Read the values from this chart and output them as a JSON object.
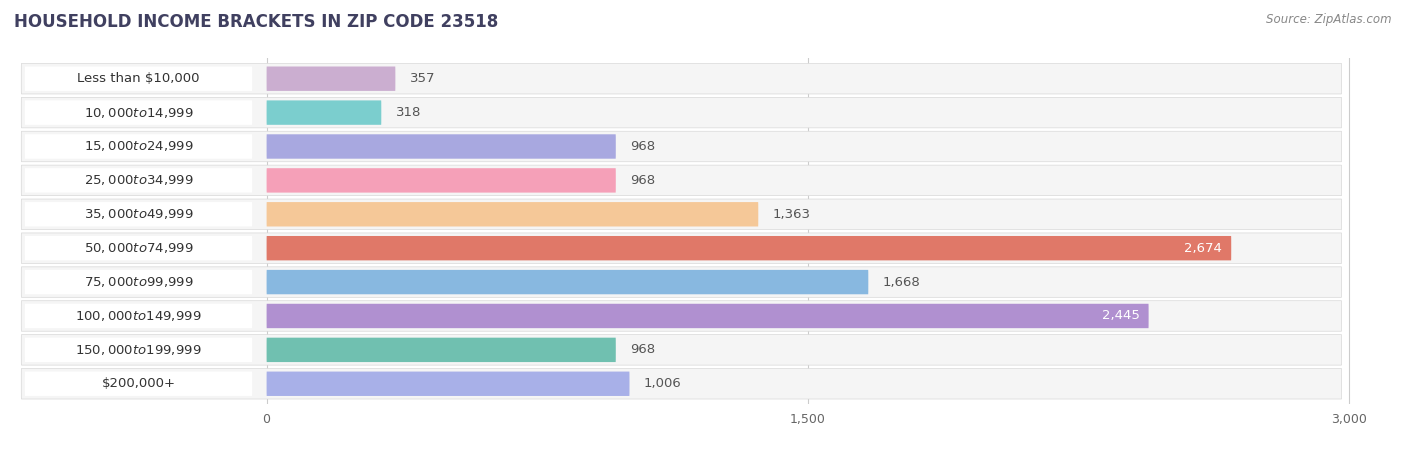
{
  "title": "HOUSEHOLD INCOME BRACKETS IN ZIP CODE 23518",
  "source": "Source: ZipAtlas.com",
  "categories": [
    "Less than $10,000",
    "$10,000 to $14,999",
    "$15,000 to $24,999",
    "$25,000 to $34,999",
    "$35,000 to $49,999",
    "$50,000 to $74,999",
    "$75,000 to $99,999",
    "$100,000 to $149,999",
    "$150,000 to $199,999",
    "$200,000+"
  ],
  "values": [
    357,
    318,
    968,
    968,
    1363,
    2674,
    1668,
    2445,
    968,
    1006
  ],
  "bar_colors": [
    "#cbaed0",
    "#7bcece",
    "#a8a8e0",
    "#f5a0b8",
    "#f5c898",
    "#e07868",
    "#88b8e0",
    "#b090d0",
    "#70c0b0",
    "#a8b0e8"
  ],
  "label_colors": [
    "#444444",
    "#444444",
    "#444444",
    "#444444",
    "#444444",
    "#ffffff",
    "#444444",
    "#ffffff",
    "#444444",
    "#444444"
  ],
  "xlim": [
    0,
    3000
  ],
  "xticks": [
    0,
    1500,
    3000
  ],
  "background_color": "#ffffff",
  "row_bg_color": "#f0f0f0",
  "bar_bg_color": "#e8e8e8",
  "title_fontsize": 12,
  "source_fontsize": 8.5,
  "label_fontsize": 9.5,
  "value_fontsize": 9.5
}
